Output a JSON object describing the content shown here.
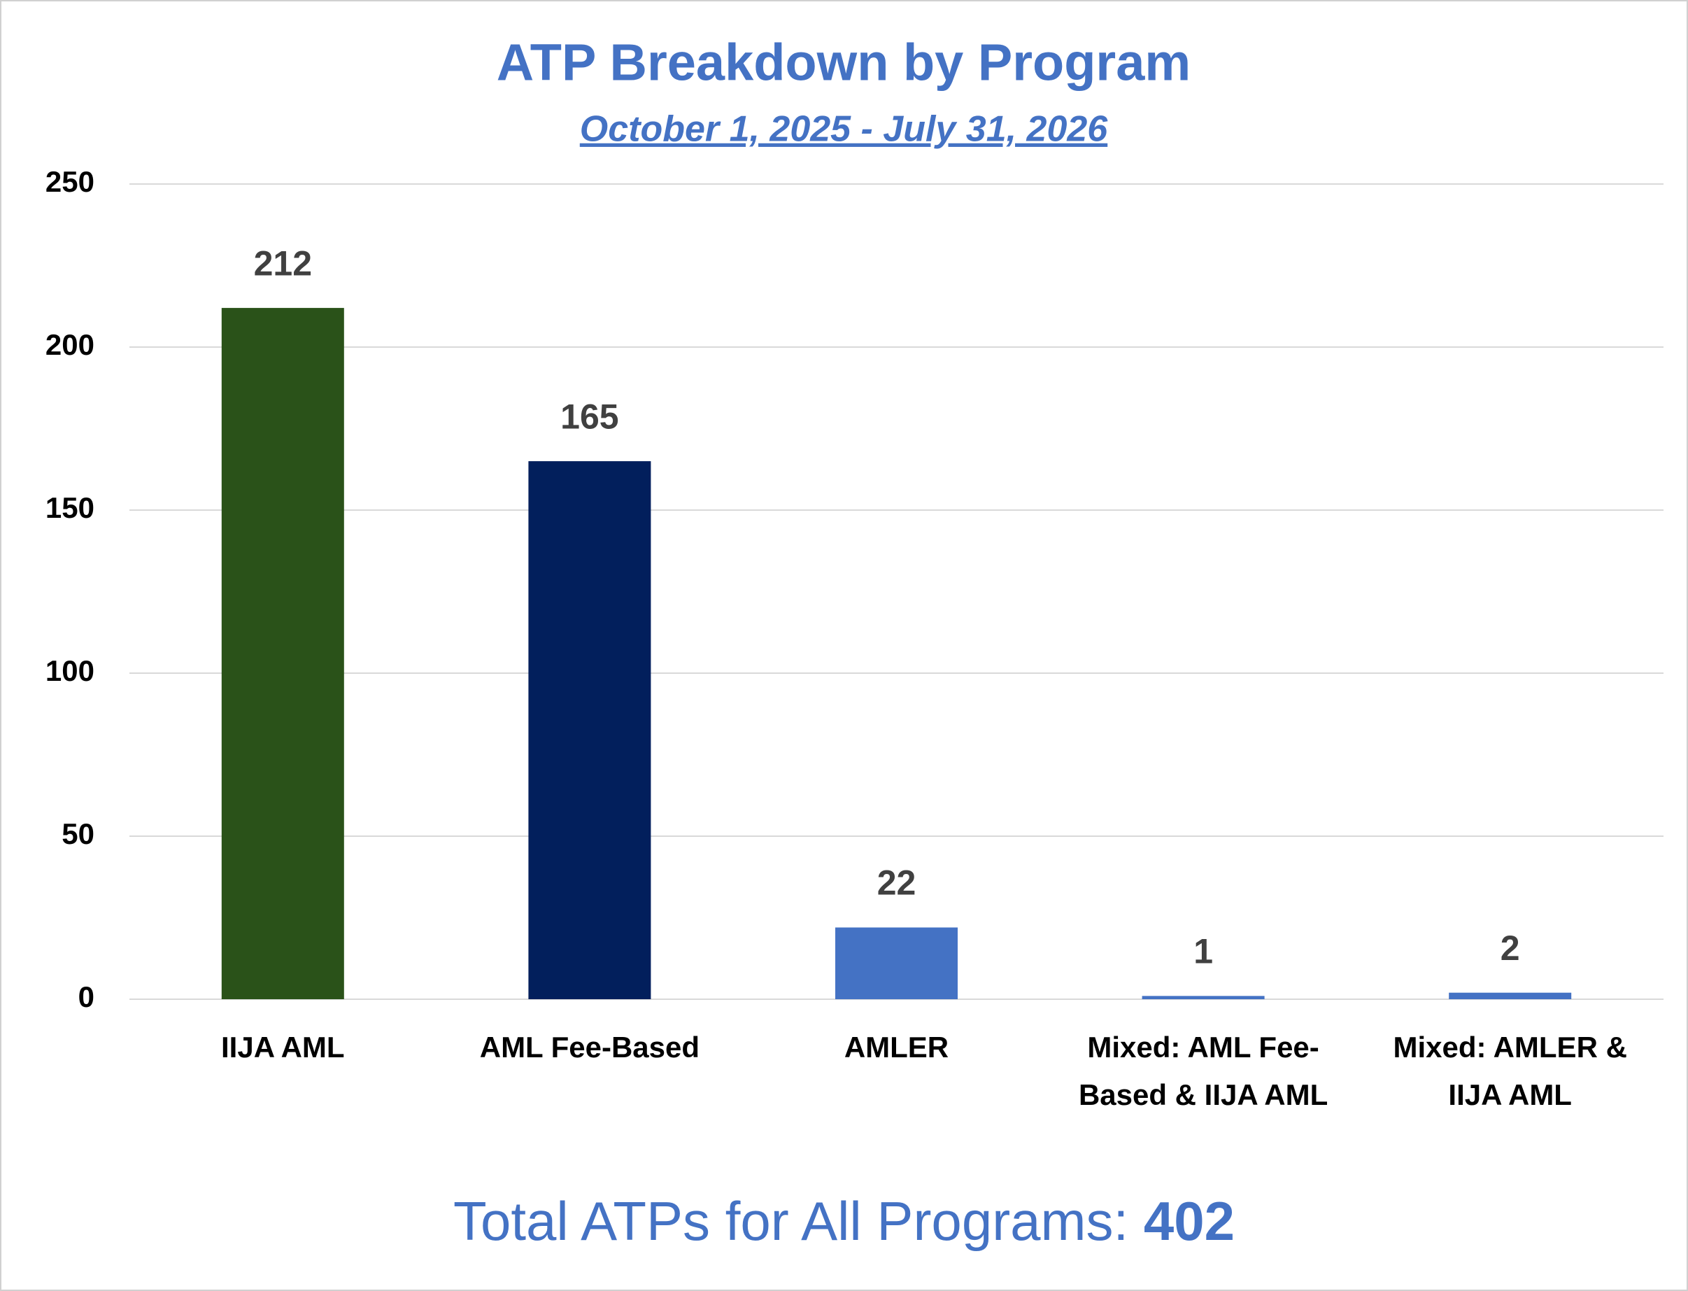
{
  "chart_data": {
    "type": "bar",
    "title": "ATP Breakdown by Program",
    "subtitle": "October 1, 2025 - July 31, 2026",
    "categories": [
      "IIJA AML",
      "AML Fee-Based",
      "AMLER",
      "Mixed: AML Fee-Based & IIJA AML",
      "Mixed: AMLER & IIJA AML"
    ],
    "values": [
      212,
      165,
      22,
      1,
      2
    ],
    "colors": [
      "#2a5219",
      "#021f5c",
      "#4472c4",
      "#4472c4",
      "#4472c4"
    ],
    "ylim": [
      0,
      250
    ],
    "yticks": [
      0,
      50,
      100,
      150,
      200,
      250
    ],
    "grid": true,
    "footer_label": "Total ATPs for All Programs:",
    "total": 402
  }
}
